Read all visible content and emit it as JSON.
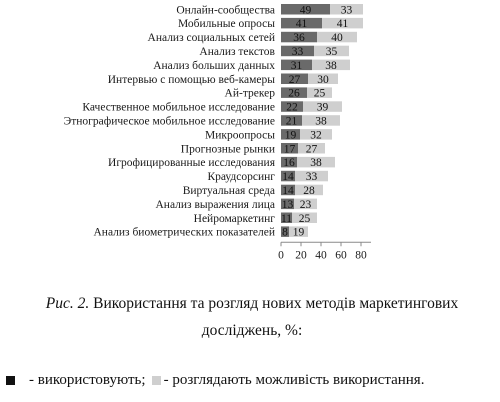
{
  "chart_data": {
    "type": "bar",
    "orientation": "horizontal",
    "stacked": true,
    "categories": [
      "Онлайн-сообщества",
      "Мобильные опросы",
      "Анализ социальных сетей",
      "Анализ текстов",
      "Анализ больших данных",
      "Интервью с помощью веб-камеры",
      "Ай-трекер",
      "Качественное мобильное исследование",
      "Этнографическое мобильное исследование",
      "Микроопросы",
      "Прогнозные рынки",
      "Игрофицированные исследования",
      "Краудсорсинг",
      "Виртуальная среда",
      "Анализ выражения лица",
      "Нейромаркетинг",
      "Анализ биометрических показателей"
    ],
    "series": [
      {
        "color": "#6a6a6a",
        "values": [
          49,
          41,
          36,
          33,
          31,
          27,
          26,
          22,
          21,
          19,
          17,
          16,
          14,
          14,
          13,
          11,
          8
        ]
      },
      {
        "color": "#cfcfcf",
        "values": [
          33,
          41,
          40,
          35,
          38,
          30,
          25,
          39,
          38,
          32,
          27,
          38,
          33,
          28,
          23,
          25,
          19
        ]
      }
    ],
    "xlim": [
      0,
      90
    ],
    "xticks": [
      0,
      20,
      40,
      60,
      80
    ],
    "grid": false,
    "legend_position": "bottom"
  },
  "caption": {
    "figure_ref": "Рис. 2.",
    "text": " Використання та розгляд нових методів маркетингових досліджень, %:"
  },
  "legend": {
    "item_1": "- використовують;",
    "item_2": "- розглядають можливість використання."
  }
}
